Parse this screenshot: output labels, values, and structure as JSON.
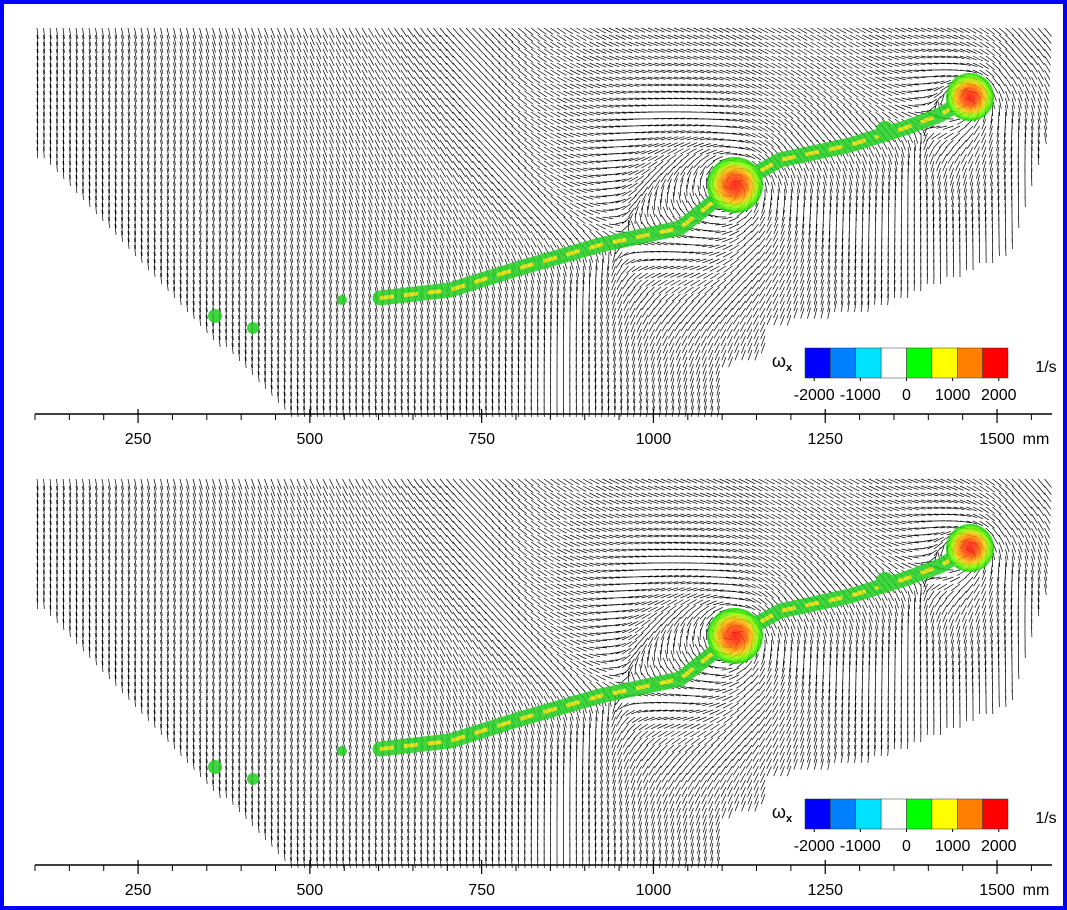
{
  "chart_data": [
    {
      "type": "vector-field",
      "xlim": [
        100,
        1580
      ],
      "xticks": [
        250,
        500,
        750,
        1000,
        1250,
        1500
      ],
      "xminorticks": [
        100,
        150,
        200,
        300,
        350,
        400,
        450,
        550,
        600,
        650,
        700,
        800,
        850,
        900,
        950,
        1050,
        1100,
        1150,
        1200,
        1300,
        1350,
        1400,
        1450,
        1550
      ],
      "xlabel": "mm",
      "colorbar": {
        "label": "ω",
        "label_sub": "x",
        "unit": "1/s",
        "clim": [
          -2200,
          2200
        ],
        "ticks": [
          -2000,
          -1000,
          0,
          1000,
          2000
        ],
        "colors": [
          "#0000ff",
          "#0080ff",
          "#00e0ff",
          "#ffffff",
          "#00ff00",
          "#ffff00",
          "#ff8000",
          "#ff0000"
        ]
      }
    },
    {
      "type": "vector-field",
      "xlim": [
        100,
        1580
      ],
      "xticks": [
        250,
        500,
        750,
        1000,
        1250,
        1500
      ],
      "xminorticks": [
        100,
        150,
        200,
        300,
        350,
        400,
        450,
        550,
        600,
        650,
        700,
        800,
        850,
        900,
        950,
        1050,
        1100,
        1150,
        1200,
        1300,
        1350,
        1400,
        1450,
        1550
      ],
      "xlabel": "mm",
      "colorbar": {
        "label": "ω",
        "label_sub": "x",
        "unit": "1/s",
        "clim": [
          -2200,
          2200
        ],
        "ticks": [
          -2000,
          -1000,
          0,
          1000,
          2000
        ],
        "colors": [
          "#0000ff",
          "#0080ff",
          "#00e0ff",
          "#ffffff",
          "#00ff00",
          "#ffff00",
          "#ff8000",
          "#ff0000"
        ]
      }
    }
  ]
}
